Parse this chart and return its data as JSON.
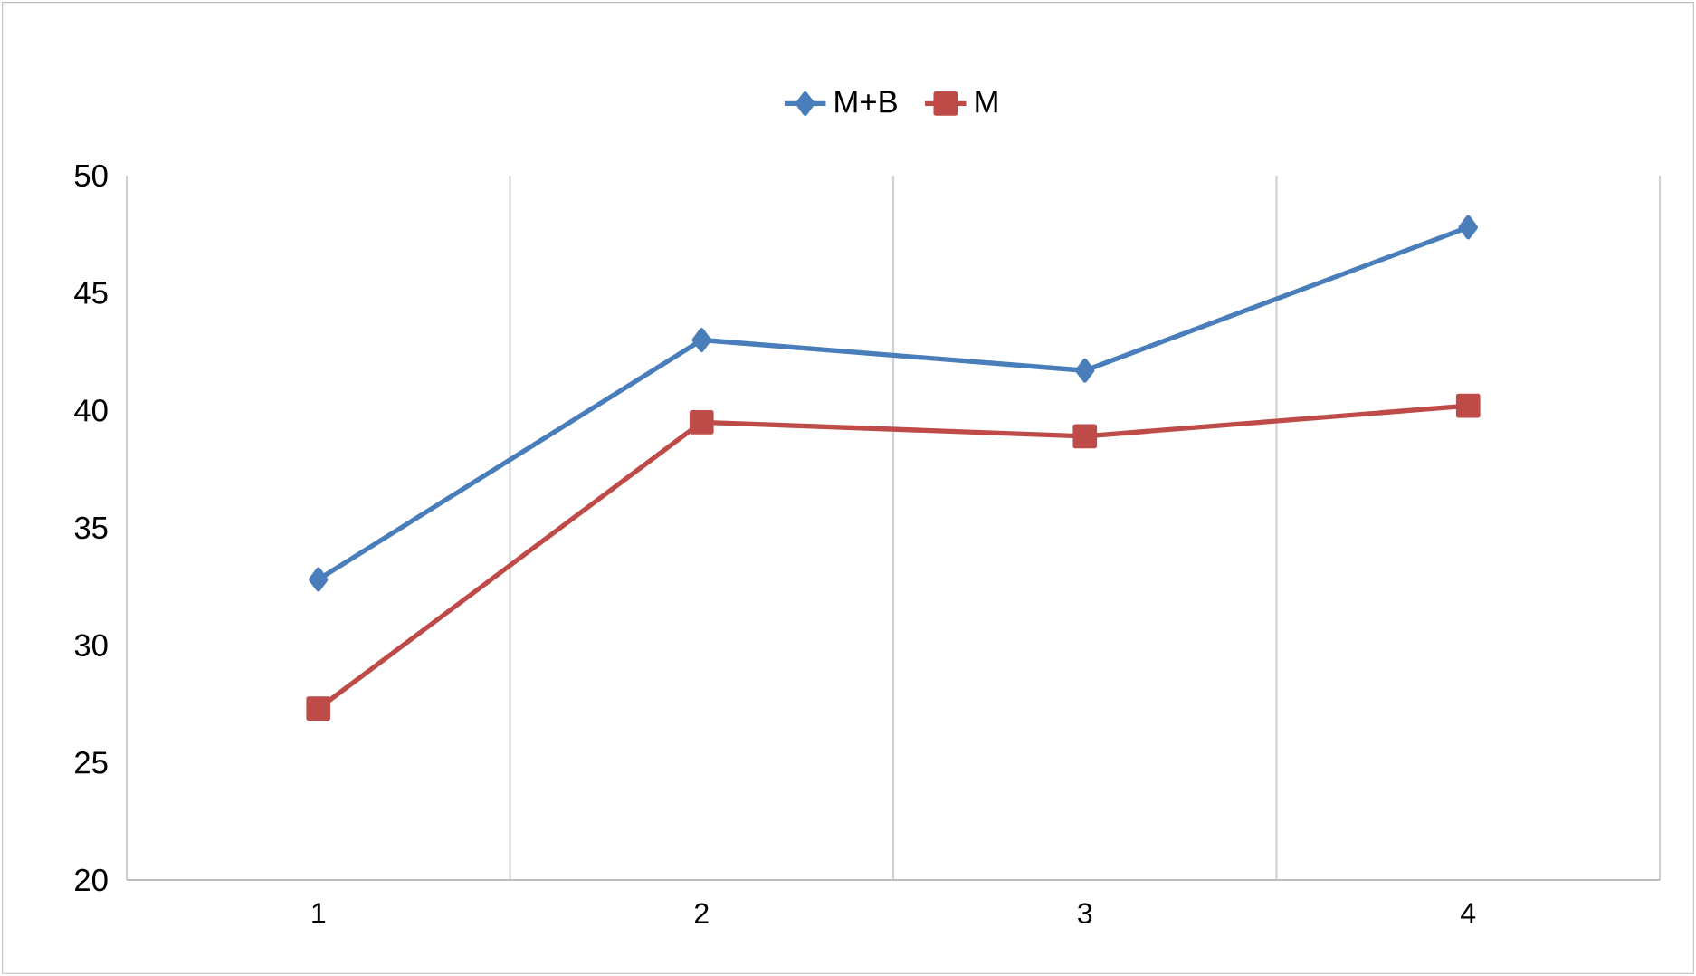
{
  "chart_data": {
    "type": "line",
    "categories": [
      "1",
      "2",
      "3",
      "4"
    ],
    "series": [
      {
        "name": "M+B",
        "color": "#4a7ebb",
        "marker": "diamond",
        "values": [
          32.8,
          43.0,
          41.7,
          47.8
        ]
      },
      {
        "name": "M",
        "color": "#be4b48",
        "marker": "square",
        "values": [
          27.3,
          39.5,
          38.9,
          40.2
        ]
      }
    ],
    "ylim": [
      20,
      50
    ],
    "yticks": [
      20,
      25,
      30,
      35,
      40,
      45,
      50
    ],
    "grid": "x",
    "legend": "top"
  }
}
